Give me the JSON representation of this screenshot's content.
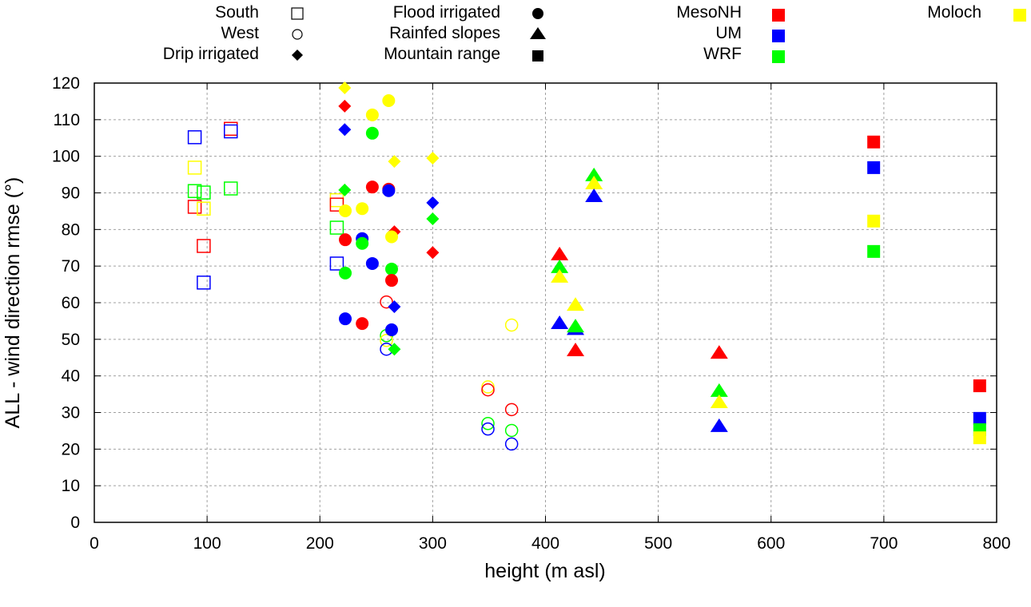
{
  "chart_data": {
    "type": "scatter",
    "title": "",
    "xlabel": "height (m asl)",
    "ylabel": "ALL - wind direction rmse (°)",
    "xlim": [
      0,
      800
    ],
    "ylim": [
      0,
      120
    ],
    "xticks": [
      "0",
      "100",
      "200",
      "300",
      "400",
      "500",
      "600",
      "700",
      "800"
    ],
    "yticks": [
      "0",
      "10",
      "20",
      "30",
      "40",
      "50",
      "60",
      "70",
      "80",
      "90",
      "100",
      "110",
      "120"
    ],
    "grid": true,
    "legend_placement": "top (above plot)",
    "legend_sites": [
      {
        "label": "South",
        "marker": "open-square"
      },
      {
        "label": "West",
        "marker": "open-circle"
      },
      {
        "label": "Drip irrigated",
        "marker": "filled-diamond"
      },
      {
        "label": "Flood irrigated",
        "marker": "filled-circle"
      },
      {
        "label": "Rainfed slopes",
        "marker": "filled-triangle"
      },
      {
        "label": "Mountain range",
        "marker": "filled-square"
      }
    ],
    "legend_models": [
      {
        "label": "MesoNH",
        "color": "#ff0000"
      },
      {
        "label": "UM",
        "color": "#0000ff"
      },
      {
        "label": "WRF",
        "color": "#00ff00"
      },
      {
        "label": "Moloch",
        "color": "#ffff00"
      }
    ],
    "series": [
      {
        "site": "South",
        "marker": "open-square",
        "points": [
          {
            "model": "UM",
            "x": 89,
            "y": 105.2
          },
          {
            "model": "MesoNH",
            "x": 121,
            "y": 107.5
          },
          {
            "model": "UM",
            "x": 121,
            "y": 106.8
          },
          {
            "model": "Moloch",
            "x": 89,
            "y": 96.9
          },
          {
            "model": "WRF",
            "x": 89,
            "y": 90.5
          },
          {
            "model": "WRF",
            "x": 97,
            "y": 90.1
          },
          {
            "model": "MesoNH",
            "x": 89,
            "y": 86.2
          },
          {
            "model": "Moloch",
            "x": 97,
            "y": 85.7
          },
          {
            "model": "MesoNH",
            "x": 97,
            "y": 75.5
          },
          {
            "model": "UM",
            "x": 97,
            "y": 65.5
          },
          {
            "model": "WRF",
            "x": 121,
            "y": 91.2
          },
          {
            "model": "Moloch",
            "x": 215,
            "y": 88.0
          },
          {
            "model": "MesoNH",
            "x": 215,
            "y": 86.8
          },
          {
            "model": "WRF",
            "x": 215,
            "y": 80.5
          },
          {
            "model": "UM",
            "x": 215,
            "y": 70.7
          }
        ]
      },
      {
        "site": "West",
        "marker": "open-circle",
        "points": [
          {
            "model": "MesoNH",
            "x": 259,
            "y": 60.2
          },
          {
            "model": "WRF",
            "x": 259,
            "y": 51.0
          },
          {
            "model": "Moloch",
            "x": 259,
            "y": 49.7
          },
          {
            "model": "UM",
            "x": 259,
            "y": 47.3
          },
          {
            "model": "Moloch",
            "x": 370,
            "y": 53.9
          },
          {
            "model": "Moloch",
            "x": 349,
            "y": 37.0
          },
          {
            "model": "MesoNH",
            "x": 349,
            "y": 36.2
          },
          {
            "model": "MesoNH",
            "x": 370,
            "y": 30.8
          },
          {
            "model": "WRF",
            "x": 349,
            "y": 27.0
          },
          {
            "model": "UM",
            "x": 349,
            "y": 25.5
          },
          {
            "model": "WRF",
            "x": 370,
            "y": 25.1
          },
          {
            "model": "UM",
            "x": 370,
            "y": 21.4
          }
        ]
      },
      {
        "site": "Drip irrigated",
        "marker": "filled-diamond",
        "points": [
          {
            "model": "Moloch",
            "x": 222,
            "y": 118.7
          },
          {
            "model": "MesoNH",
            "x": 222,
            "y": 113.7
          },
          {
            "model": "UM",
            "x": 222,
            "y": 107.3
          },
          {
            "model": "WRF",
            "x": 222,
            "y": 90.8
          },
          {
            "model": "Moloch",
            "x": 266,
            "y": 98.6
          },
          {
            "model": "Moloch",
            "x": 300,
            "y": 99.5
          },
          {
            "model": "MesoNH",
            "x": 266,
            "y": 79.4
          },
          {
            "model": "UM",
            "x": 300,
            "y": 87.3
          },
          {
            "model": "WRF",
            "x": 300,
            "y": 82.9
          },
          {
            "model": "MesoNH",
            "x": 300,
            "y": 73.7
          },
          {
            "model": "UM",
            "x": 266,
            "y": 58.9
          },
          {
            "model": "WRF",
            "x": 266,
            "y": 47.3
          }
        ]
      },
      {
        "site": "Flood irrigated",
        "marker": "filled-circle",
        "points": [
          {
            "model": "Moloch",
            "x": 261,
            "y": 115.2
          },
          {
            "model": "Moloch",
            "x": 246.5,
            "y": 111.3
          },
          {
            "model": "WRF",
            "x": 246.5,
            "y": 106.3
          },
          {
            "model": "MesoNH",
            "x": 246.5,
            "y": 91.6
          },
          {
            "model": "MesoNH",
            "x": 261,
            "y": 91.0
          },
          {
            "model": "UM",
            "x": 261,
            "y": 90.6
          },
          {
            "model": "Moloch",
            "x": 222.5,
            "y": 85.1
          },
          {
            "model": "Moloch",
            "x": 237.5,
            "y": 85.7
          },
          {
            "model": "MesoNH",
            "x": 222.5,
            "y": 77.2
          },
          {
            "model": "UM",
            "x": 237.5,
            "y": 77.5
          },
          {
            "model": "WRF",
            "x": 237.5,
            "y": 76.2
          },
          {
            "model": "Moloch",
            "x": 263.6,
            "y": 78.0
          },
          {
            "model": "UM",
            "x": 246.5,
            "y": 70.7
          },
          {
            "model": "WRF",
            "x": 222.5,
            "y": 68.1
          },
          {
            "model": "WRF",
            "x": 263.6,
            "y": 69.2
          },
          {
            "model": "MesoNH",
            "x": 263.6,
            "y": 66.1
          },
          {
            "model": "UM",
            "x": 222.5,
            "y": 55.6
          },
          {
            "model": "MesoNH",
            "x": 237.5,
            "y": 54.3
          },
          {
            "model": "UM",
            "x": 263.6,
            "y": 52.6
          }
        ]
      },
      {
        "site": "Rainfed slopes",
        "marker": "filled-triangle",
        "points": [
          {
            "model": "MesoNH",
            "x": 412.5,
            "y": 72.9
          },
          {
            "model": "WRF",
            "x": 412.5,
            "y": 69.4
          },
          {
            "model": "Moloch",
            "x": 412.5,
            "y": 66.8
          },
          {
            "model": "Moloch",
            "x": 426.6,
            "y": 59.1
          },
          {
            "model": "UM",
            "x": 412.5,
            "y": 54.1
          },
          {
            "model": "UM",
            "x": 426.6,
            "y": 52.5
          },
          {
            "model": "WRF",
            "x": 426.6,
            "y": 53.2
          },
          {
            "model": "MesoNH",
            "x": 426.6,
            "y": 46.7
          },
          {
            "model": "WRF",
            "x": 443,
            "y": 94.5
          },
          {
            "model": "Moloch",
            "x": 443,
            "y": 92.3
          },
          {
            "model": "UM",
            "x": 443,
            "y": 88.8
          },
          {
            "model": "MesoNH",
            "x": 554,
            "y": 46.0
          },
          {
            "model": "WRF",
            "x": 554,
            "y": 35.6
          },
          {
            "model": "Moloch",
            "x": 554,
            "y": 32.5
          },
          {
            "model": "UM",
            "x": 554,
            "y": 26.0
          }
        ]
      },
      {
        "site": "Mountain range",
        "marker": "filled-square",
        "points": [
          {
            "model": "MesoNH",
            "x": 691,
            "y": 103.9
          },
          {
            "model": "UM",
            "x": 691,
            "y": 96.9
          },
          {
            "model": "Moloch",
            "x": 691,
            "y": 82.3
          },
          {
            "model": "WRF",
            "x": 691,
            "y": 74.0
          },
          {
            "model": "MesoNH",
            "x": 785,
            "y": 37.3
          },
          {
            "model": "UM",
            "x": 785,
            "y": 28.4
          },
          {
            "model": "WRF",
            "x": 785,
            "y": 25.3
          },
          {
            "model": "Moloch",
            "x": 785,
            "y": 23.1
          }
        ]
      }
    ]
  }
}
